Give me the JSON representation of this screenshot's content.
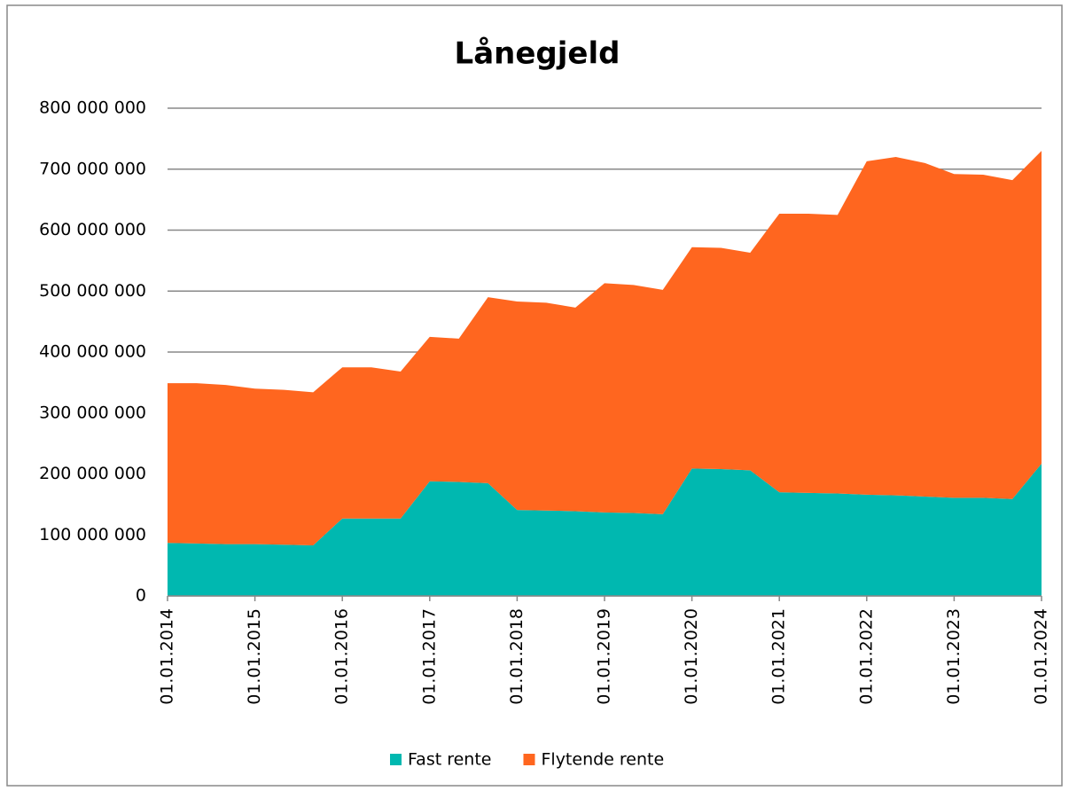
{
  "chart_data": {
    "type": "stacked_area",
    "title": "Lånegjeld",
    "categories": [
      "01.01.2014",
      null,
      null,
      "01.01.2015",
      null,
      null,
      "01.01.2016",
      null,
      null,
      "01.01.2017",
      null,
      null,
      "01.01.2018",
      null,
      null,
      "01.01.2019",
      null,
      null,
      "01.01.2020",
      null,
      null,
      "01.01.2021",
      null,
      null,
      "01.01.2022",
      null,
      null,
      "01.01.2023",
      null,
      null,
      "01.01.2024"
    ],
    "series": [
      {
        "name": "Fast rente",
        "color": "#00b8b0",
        "values": [
          87000000,
          86000000,
          85000000,
          85000000,
          84000000,
          83000000,
          127000000,
          127000000,
          127000000,
          188000000,
          187000000,
          185000000,
          141000000,
          140000000,
          139000000,
          137000000,
          136000000,
          134000000,
          209000000,
          208000000,
          206000000,
          170000000,
          169000000,
          168000000,
          166000000,
          165000000,
          163000000,
          161000000,
          161000000,
          159000000,
          217000000
        ]
      },
      {
        "name": "Flytende rente",
        "color": "#ff661f",
        "values": [
          262000000,
          263000000,
          261000000,
          255000000,
          254000000,
          251000000,
          248000000,
          248000000,
          241000000,
          237000000,
          235000000,
          305000000,
          342000000,
          341000000,
          334000000,
          376000000,
          374000000,
          368000000,
          363000000,
          363000000,
          357000000,
          457000000,
          458000000,
          457000000,
          547000000,
          555000000,
          547000000,
          531000000,
          530000000,
          523000000,
          513000000
        ]
      }
    ],
    "ylim": [
      0,
      800000000
    ],
    "yticks": [
      0,
      {
        "value": 100000000,
        "label": "100 000 000"
      },
      {
        "value": 200000000,
        "label": "200 000 000"
      },
      {
        "value": 300000000,
        "label": "300 000 000"
      },
      {
        "value": 400000000,
        "label": "400 000 000"
      },
      {
        "value": 500000000,
        "label": "500 000 000"
      },
      {
        "value": 600000000,
        "label": "600 000 000"
      },
      {
        "value": 700000000,
        "label": "700 000 000"
      },
      {
        "value": 800000000,
        "label": "800 000 000"
      }
    ],
    "grid": true,
    "legend": "bottom"
  }
}
